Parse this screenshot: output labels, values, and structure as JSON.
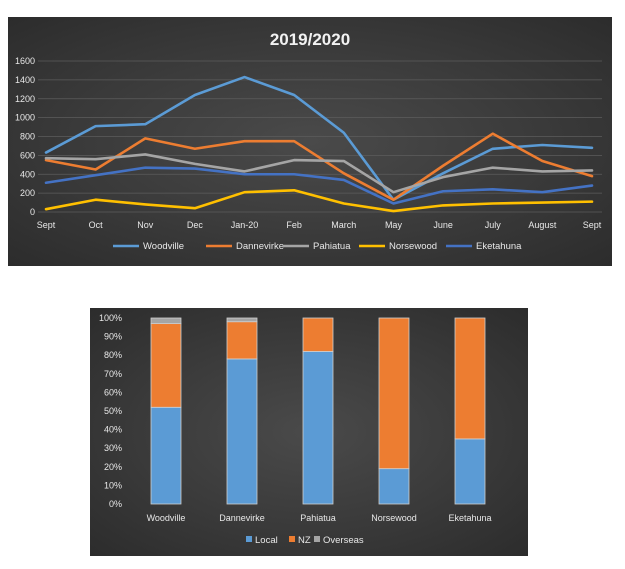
{
  "chart_data": [
    {
      "type": "line",
      "title": "2019/2020",
      "categories": [
        "Sept",
        "Oct",
        "Nov",
        "Dec",
        "Jan-20",
        "Feb",
        "March",
        "May",
        "June",
        "July",
        "August",
        "Sept"
      ],
      "ylim": [
        0,
        1600
      ],
      "yticks": [
        0,
        200,
        400,
        600,
        800,
        1000,
        1200,
        1400,
        1600
      ],
      "grid": true,
      "legend_position": "bottom",
      "series": [
        {
          "name": "Woodville",
          "color": "#5b9bd5",
          "values": [
            630,
            910,
            930,
            1240,
            1430,
            1240,
            840,
            130,
            410,
            670,
            710,
            680
          ]
        },
        {
          "name": "Dannevirke",
          "color": "#ed7d31",
          "values": [
            550,
            450,
            780,
            670,
            750,
            750,
            410,
            130,
            490,
            830,
            540,
            380
          ]
        },
        {
          "name": "Pahiatua",
          "color": "#a5a5a5",
          "values": [
            570,
            560,
            610,
            510,
            430,
            550,
            540,
            210,
            370,
            470,
            430,
            440
          ]
        },
        {
          "name": "Norsewood",
          "color": "#ffc000",
          "values": [
            30,
            130,
            80,
            40,
            210,
            230,
            90,
            10,
            70,
            90,
            100,
            110
          ]
        },
        {
          "name": "Eketahuna",
          "color": "#4472c4",
          "values": [
            310,
            390,
            470,
            460,
            400,
            400,
            340,
            90,
            220,
            240,
            210,
            280
          ]
        }
      ]
    },
    {
      "type": "bar",
      "stacked": true,
      "categories": [
        "Woodville",
        "Dannevirke",
        "Pahiatua",
        "Norsewood",
        "Eketahuna"
      ],
      "ylim": [
        0,
        1
      ],
      "yticks": [
        "0%",
        "10%",
        "20%",
        "30%",
        "40%",
        "50%",
        "60%",
        "70%",
        "80%",
        "90%",
        "100%"
      ],
      "legend_position": "bottom",
      "series": [
        {
          "name": "Local",
          "color": "#5b9bd5",
          "values": [
            0.52,
            0.78,
            0.82,
            0.19,
            0.35
          ]
        },
        {
          "name": "NZ",
          "color": "#ed7d31",
          "values": [
            0.45,
            0.2,
            0.18,
            0.81,
            0.65
          ]
        },
        {
          "name": "Overseas",
          "color": "#a5a5a5",
          "values": [
            0.03,
            0.02,
            0.0,
            0.0,
            0.0
          ]
        }
      ]
    }
  ]
}
